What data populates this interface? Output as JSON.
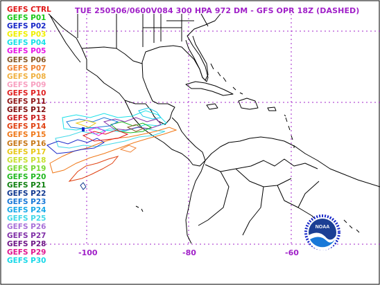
{
  "title": "TUE 250506/0600V084  300 HPA 972 DM - GFS OPR 18Z (DASHED)",
  "legend": [
    {
      "label": "GEFS CTRL",
      "color": "#e01818"
    },
    {
      "label": "GEFS P01",
      "color": "#18c818"
    },
    {
      "label": "GEFS P02",
      "color": "#1828c8"
    },
    {
      "label": "GEFS P03",
      "color": "#f0f000"
    },
    {
      "label": "GEFS P04",
      "color": "#18e0e8"
    },
    {
      "label": "GEFS P05",
      "color": "#e818e8"
    },
    {
      "label": "GEFS P06",
      "color": "#8a5a2a"
    },
    {
      "label": "GEFS P07",
      "color": "#f08030"
    },
    {
      "label": "GEFS P08",
      "color": "#f0b040"
    },
    {
      "label": "GEFS P09",
      "color": "#f8a0c0"
    },
    {
      "label": "GEFS P10",
      "color": "#e02020"
    },
    {
      "label": "GEFS P11",
      "color": "#901818"
    },
    {
      "label": "GEFS P12",
      "color": "#801010"
    },
    {
      "label": "GEFS P13",
      "color": "#c81818"
    },
    {
      "label": "GEFS P14",
      "color": "#e04010"
    },
    {
      "label": "GEFS P15",
      "color": "#f07818"
    },
    {
      "label": "GEFS P16",
      "color": "#c87818"
    },
    {
      "label": "GEFS P17",
      "color": "#e8c818"
    },
    {
      "label": "GEFS P18",
      "color": "#c8e030"
    },
    {
      "label": "GEFS P19",
      "color": "#78d830"
    },
    {
      "label": "GEFS P20",
      "color": "#20b820"
    },
    {
      "label": "GEFS P21",
      "color": "#108010"
    },
    {
      "label": "GEFS P22",
      "color": "#103890"
    },
    {
      "label": "GEFS P23",
      "color": "#1878d8"
    },
    {
      "label": "GEFS P24",
      "color": "#18a8e8"
    },
    {
      "label": "GEFS P25",
      "color": "#40d8e8"
    },
    {
      "label": "GEFS P26",
      "color": "#a870d8"
    },
    {
      "label": "GEFS P27",
      "color": "#8030a8"
    },
    {
      "label": "GEFS P28",
      "color": "#701888"
    },
    {
      "label": "GEFS P29",
      "color": "#e01890"
    },
    {
      "label": "GEFS P30",
      "color": "#18d8e8"
    }
  ],
  "lon_labels": [
    "-100",
    "-80",
    "-60"
  ],
  "gridline_color": "#a020c8",
  "logo_text": "NOAA"
}
